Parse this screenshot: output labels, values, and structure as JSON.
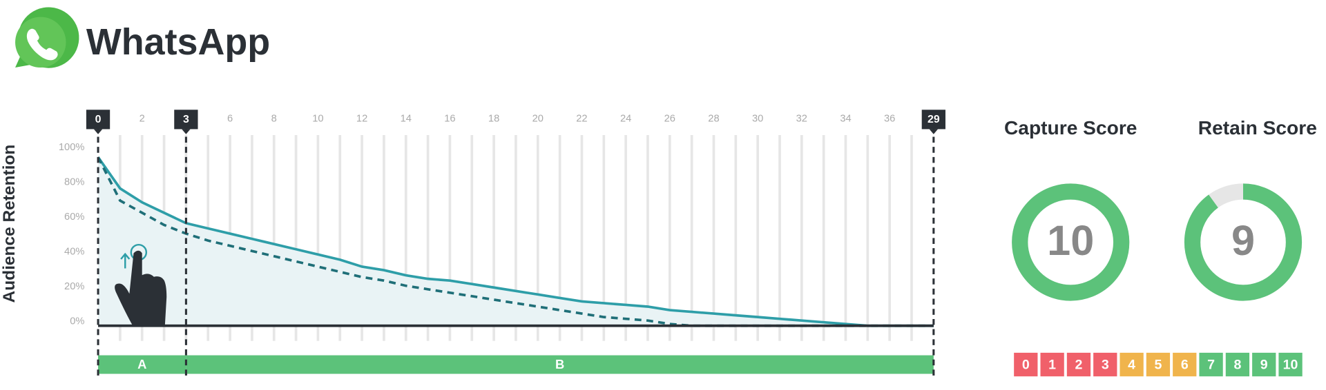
{
  "header": {
    "title": "WhatsApp"
  },
  "chart_data": {
    "type": "line",
    "ylabel": "Audience Retention",
    "x": [
      0,
      1,
      2,
      3,
      4,
      5,
      6,
      7,
      8,
      9,
      10,
      11,
      12,
      13,
      14,
      15,
      16,
      17,
      18,
      19,
      20,
      21,
      22,
      23,
      24,
      25,
      26,
      27,
      28,
      29,
      30,
      31,
      32,
      33,
      34,
      35,
      36,
      37,
      38
    ],
    "series": [
      {
        "color": "#2e9ea8",
        "dashed": false,
        "fill": "#e9f3f5",
        "values": [
          97,
          79,
          71,
          65,
          59,
          56,
          53,
          50,
          47,
          44,
          41,
          38,
          34,
          32,
          29,
          27,
          26,
          24,
          22,
          20,
          18,
          16,
          14,
          13,
          12,
          11,
          9,
          8,
          7,
          6,
          5,
          4,
          3,
          2,
          1,
          0,
          0,
          0,
          0
        ]
      },
      {
        "color": "#1f6f78",
        "dashed": true,
        "values": [
          97,
          72,
          65,
          58,
          53,
          49,
          46,
          43,
          40,
          37,
          34,
          31,
          28,
          26,
          23,
          21,
          19,
          17,
          15,
          13,
          11,
          9,
          7,
          5,
          4,
          3,
          1,
          0,
          0,
          0,
          0,
          0,
          0,
          0,
          0,
          0,
          0,
          0,
          0
        ]
      }
    ],
    "xlim": [
      0,
      38
    ],
    "xticks": [
      2,
      4,
      6,
      8,
      10,
      12,
      14,
      16,
      18,
      20,
      22,
      24,
      26,
      28,
      30,
      32,
      34,
      36
    ],
    "ylim": [
      0,
      100
    ],
    "yticks": [
      {
        "value": 0,
        "label": "0%"
      },
      {
        "value": 20,
        "label": "20%"
      },
      {
        "value": 40,
        "label": "40%"
      },
      {
        "value": 60,
        "label": "60%"
      },
      {
        "value": 80,
        "label": "80%"
      },
      {
        "value": 100,
        "label": "100%"
      }
    ],
    "grid": true,
    "markers": [
      0,
      {
        "value": 4,
        "label": "3"
      },
      {
        "value": 38,
        "label": "29"
      }
    ],
    "segments": [
      {
        "label": "A",
        "start": 0,
        "end": 4
      },
      {
        "label": "B",
        "start": 4,
        "end": 38
      }
    ],
    "segment_color": "#5cc27a"
  },
  "scores": [
    {
      "title": "Capture Score",
      "value": 10
    },
    {
      "title": "Retain Score",
      "value": 9
    }
  ],
  "scale": {
    "values": [
      0,
      1,
      2,
      3,
      4,
      5,
      6,
      7,
      8,
      9,
      10
    ],
    "colors": [
      "#f0606a",
      "#f0606a",
      "#f0606a",
      "#f0606a",
      "#f0b44c",
      "#f0b44c",
      "#f0b44c",
      "#5cc27a",
      "#5cc27a",
      "#5cc27a",
      "#5cc27a"
    ]
  }
}
